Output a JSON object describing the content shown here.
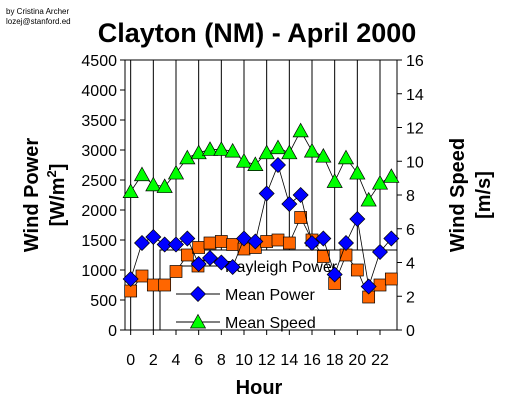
{
  "credit": [
    "by Cristina Archer",
    "lozej@stanford.ed"
  ],
  "chart_data": {
    "type": "scatter",
    "title": "Clayton (NM) - April 2000",
    "xlabel": "Hour",
    "ylabel_left": [
      "Wind Power",
      "[W/m",
      "2",
      "]"
    ],
    "ylabel_right": [
      "Wind Speed",
      "[m/s]"
    ],
    "x": [
      0,
      1,
      2,
      3,
      4,
      5,
      6,
      7,
      8,
      9,
      10,
      11,
      12,
      13,
      14,
      15,
      16,
      17,
      18,
      19,
      20,
      21,
      22,
      23
    ],
    "xticks": [
      "0",
      "2",
      "4",
      "6",
      "8",
      "10",
      "12",
      "14",
      "16",
      "18",
      "20",
      "22"
    ],
    "xlim": [
      -0.5,
      23.5
    ],
    "ylim_left": [
      0,
      4500
    ],
    "ylim_right": [
      0,
      16
    ],
    "yticks_left": [
      "0",
      "500",
      "1000",
      "1500",
      "2000",
      "2500",
      "3000",
      "3500",
      "4000",
      "4500"
    ],
    "yticks_right": [
      "0",
      "2",
      "4",
      "6",
      "8",
      "10",
      "12",
      "14",
      "16"
    ],
    "grid": "vertical lines at labeled hours",
    "legend_position": "lower-center",
    "series": [
      {
        "name": "Rayleigh Power",
        "axis": "left",
        "marker": "square",
        "color": "#FF6600",
        "values": [
          650,
          900,
          750,
          750,
          975,
          1250,
          1375,
          1450,
          1475,
          1425,
          1350,
          1375,
          1475,
          1500,
          1450,
          1875,
          1500,
          1225,
          775,
          1250,
          1000,
          550,
          750,
          850
        ]
      },
      {
        "name": "Mean Power",
        "axis": "left",
        "marker": "diamond",
        "color": "#0000FF",
        "values": [
          850,
          1450,
          1550,
          1425,
          1425,
          1525,
          1100,
          1200,
          1125,
          1050,
          1525,
          1475,
          2275,
          2750,
          2100,
          2250,
          1450,
          1525,
          925,
          1450,
          1850,
          725,
          1300,
          1525
        ]
      },
      {
        "name": "Mean Speed",
        "axis": "right",
        "marker": "triangle",
        "color": "#00FF00",
        "values": [
          8.2,
          9.2,
          8.6,
          8.5,
          9.3,
          10.2,
          10.5,
          10.7,
          10.7,
          10.6,
          10.0,
          9.8,
          10.5,
          10.8,
          10.5,
          11.8,
          10.6,
          10.3,
          8.8,
          10.2,
          9.3,
          7.7,
          8.7,
          9.1
        ]
      }
    ]
  }
}
